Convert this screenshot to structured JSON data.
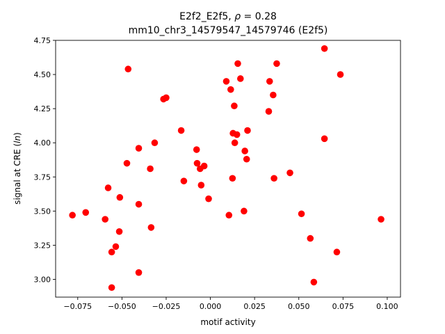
{
  "chart_data": {
    "type": "scatter",
    "title_line1_prefix": "E2f2_E2f5, ",
    "title_line1_rho": "ρ",
    "title_line1_suffix": " = 0.28",
    "title_line2": "mm10_chr3_14579547_14579746 (E2f5)",
    "xlabel": "motif activity",
    "ylabel_prefix": "signal at CRE (",
    "ylabel_italic": "ln",
    "ylabel_suffix": ")",
    "xlim": [
      -0.0875,
      0.1075
    ],
    "ylim": [
      2.87,
      4.75
    ],
    "xticks": [
      -0.075,
      -0.05,
      -0.025,
      0.0,
      0.025,
      0.05,
      0.075,
      0.1
    ],
    "xtick_labels": [
      "−0.075",
      "−0.050",
      "−0.025",
      "0.000",
      "0.025",
      "0.050",
      "0.075",
      "0.100"
    ],
    "yticks": [
      3.0,
      3.25,
      3.5,
      3.75,
      4.0,
      4.25,
      4.5,
      4.75
    ],
    "ytick_labels": [
      "3.00",
      "3.25",
      "3.50",
      "3.75",
      "4.00",
      "4.25",
      "4.50",
      "4.75"
    ],
    "marker_color": "#ff0000",
    "grid": false,
    "points": [
      {
        "x": -0.078,
        "y": 3.47
      },
      {
        "x": -0.0705,
        "y": 3.49
      },
      {
        "x": -0.0595,
        "y": 3.44
      },
      {
        "x": -0.0578,
        "y": 3.67
      },
      {
        "x": -0.0558,
        "y": 3.2
      },
      {
        "x": -0.0558,
        "y": 2.94
      },
      {
        "x": -0.0535,
        "y": 3.24
      },
      {
        "x": -0.0515,
        "y": 3.35
      },
      {
        "x": -0.0512,
        "y": 3.6
      },
      {
        "x": -0.0472,
        "y": 3.85
      },
      {
        "x": -0.0465,
        "y": 4.54
      },
      {
        "x": -0.0405,
        "y": 3.96
      },
      {
        "x": -0.0405,
        "y": 3.55
      },
      {
        "x": -0.0405,
        "y": 3.05
      },
      {
        "x": -0.034,
        "y": 3.81
      },
      {
        "x": -0.0335,
        "y": 3.38
      },
      {
        "x": -0.0315,
        "y": 4.0
      },
      {
        "x": -0.0265,
        "y": 4.32
      },
      {
        "x": -0.025,
        "y": 4.33
      },
      {
        "x": -0.0165,
        "y": 4.09
      },
      {
        "x": -0.015,
        "y": 3.72
      },
      {
        "x": -0.0078,
        "y": 3.95
      },
      {
        "x": -0.0075,
        "y": 3.85
      },
      {
        "x": -0.0058,
        "y": 3.81
      },
      {
        "x": -0.0052,
        "y": 3.69
      },
      {
        "x": -0.0035,
        "y": 3.83
      },
      {
        "x": -0.001,
        "y": 3.59
      },
      {
        "x": 0.009,
        "y": 4.45
      },
      {
        "x": 0.0105,
        "y": 3.47
      },
      {
        "x": 0.0115,
        "y": 4.39
      },
      {
        "x": 0.0125,
        "y": 3.74
      },
      {
        "x": 0.0128,
        "y": 4.07
      },
      {
        "x": 0.0135,
        "y": 4.27
      },
      {
        "x": 0.0138,
        "y": 4.0
      },
      {
        "x": 0.015,
        "y": 4.06
      },
      {
        "x": 0.0155,
        "y": 4.58
      },
      {
        "x": 0.017,
        "y": 4.47
      },
      {
        "x": 0.019,
        "y": 3.5
      },
      {
        "x": 0.0195,
        "y": 3.94
      },
      {
        "x": 0.0205,
        "y": 3.88
      },
      {
        "x": 0.021,
        "y": 4.09
      },
      {
        "x": 0.033,
        "y": 4.23
      },
      {
        "x": 0.0335,
        "y": 4.45
      },
      {
        "x": 0.0355,
        "y": 4.35
      },
      {
        "x": 0.036,
        "y": 3.74
      },
      {
        "x": 0.0375,
        "y": 4.58
      },
      {
        "x": 0.045,
        "y": 3.78
      },
      {
        "x": 0.0515,
        "y": 3.48
      },
      {
        "x": 0.0565,
        "y": 3.3
      },
      {
        "x": 0.0585,
        "y": 2.98
      },
      {
        "x": 0.0645,
        "y": 4.69
      },
      {
        "x": 0.0645,
        "y": 4.03
      },
      {
        "x": 0.0715,
        "y": 3.2
      },
      {
        "x": 0.0735,
        "y": 4.5
      },
      {
        "x": 0.0965,
        "y": 3.44
      }
    ]
  }
}
